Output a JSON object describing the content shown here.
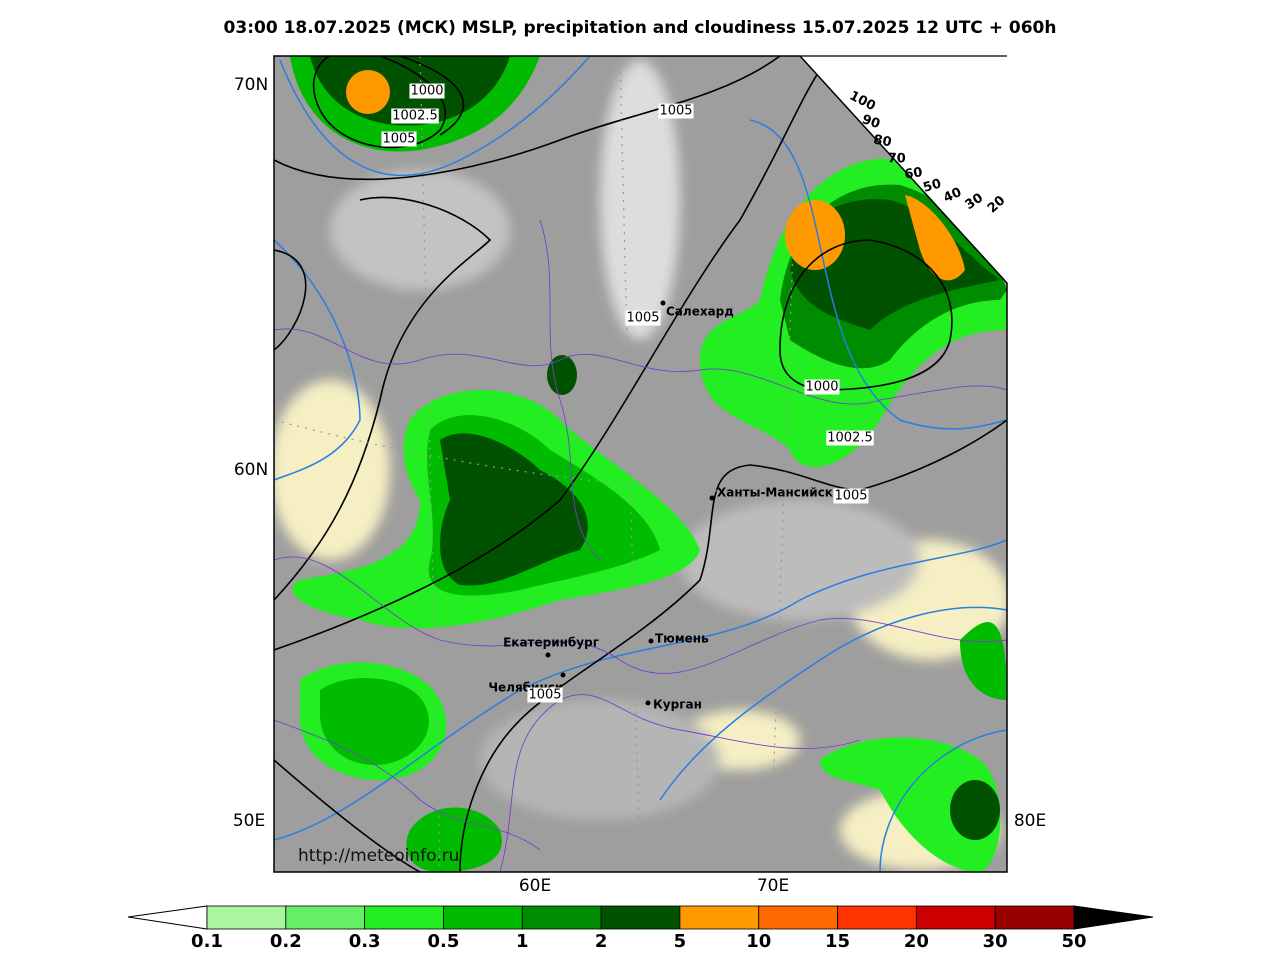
{
  "title": "03:00 18.07.2025 (МСК) MSLP, precipitation and cloudiness 15.07.2025 12 UTC + 060h",
  "map": {
    "lat_labels": [
      "70N",
      "60N"
    ],
    "lon_labels": [
      "50E",
      "60E",
      "70E",
      "80E"
    ],
    "cities": [
      "Салехард",
      "Ханты-Мансийск",
      "Екатеринбург",
      "Тюмень",
      "Челябинск",
      "Курган"
    ],
    "isobar_labels": [
      1000,
      1002.5,
      1005,
      1005,
      1005,
      1000,
      1002.5,
      1005,
      1005
    ],
    "url": "http://meteoinfo.ru"
  },
  "cloud_scale": {
    "labels": [
      100,
      90,
      80,
      70,
      60,
      50,
      40,
      30,
      20
    ]
  },
  "colorbar": {
    "ticks": [
      0.1,
      0.2,
      0.3,
      0.5,
      1,
      2,
      5,
      10,
      15,
      20,
      30,
      50
    ],
    "colors": [
      "#aaf5a0",
      "#66ee66",
      "#22ee22",
      "#00bb00",
      "#008c00",
      "#005200",
      "#ff9900",
      "#ff6a00",
      "#ff3300",
      "#cc0000",
      "#990000"
    ]
  }
}
